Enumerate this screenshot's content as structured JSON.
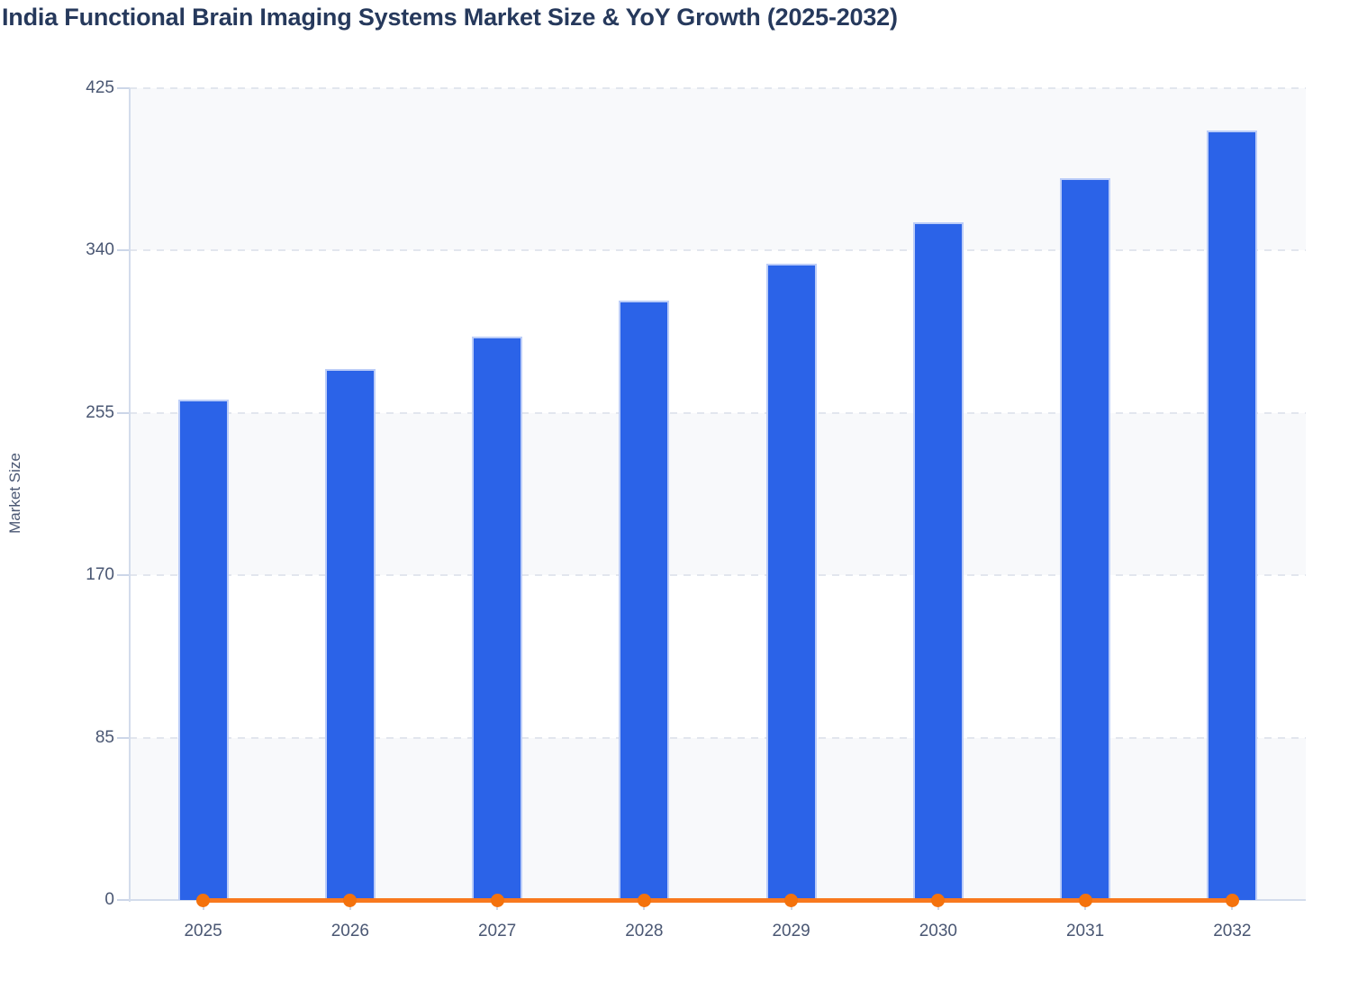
{
  "chart_data": {
    "type": "bar",
    "subtype": "bar+line combo",
    "title": "India Functional Brain Imaging Systems Market Size & YoY Growth (2025-2032)",
    "xlabel": "",
    "ylabel": "Market Size",
    "categories": [
      "2025",
      "2026",
      "2027",
      "2028",
      "2029",
      "2030",
      "2031",
      "2032"
    ],
    "series": [
      {
        "name": "Market Size",
        "type": "bar",
        "values": [
          262,
          278,
          295,
          314,
          333,
          355,
          378,
          403
        ]
      },
      {
        "name": "YoY Growth",
        "type": "line",
        "values": [
          0.063,
          0.063,
          0.063,
          0.063,
          0.063,
          0.063,
          0.063,
          0.063
        ]
      }
    ],
    "yticks": [
      0,
      85,
      170,
      255,
      340,
      425
    ],
    "ylim": [
      0,
      425
    ],
    "grid": "horizontal dashed gridlines at each y tick",
    "legend": "none",
    "plot_background": "alternating horizontal bands, gray between 340-425 / 170-255 / 0-85, white elsewhere",
    "yoy_line_note": "YoY growth line renders flat on the zero baseline of the Market Size axis, markers at every year 2025-2032"
  },
  "colors": {
    "title_text": "#26395C",
    "tick_text": "#4A5773",
    "axis_title_text": "#4A5773",
    "bar_fill": "#2B63E8",
    "bar_border": "#BCCDF8",
    "line": "#F8791E",
    "marker": "#F4720D",
    "gridline": "#E2E6EE",
    "axis_line": "#D3DCEC",
    "tick_mark": "#CCD6E8",
    "band_gray": "#F8F9FB",
    "band_white": "#FFFFFF",
    "page_background": "#FFFFFF"
  }
}
